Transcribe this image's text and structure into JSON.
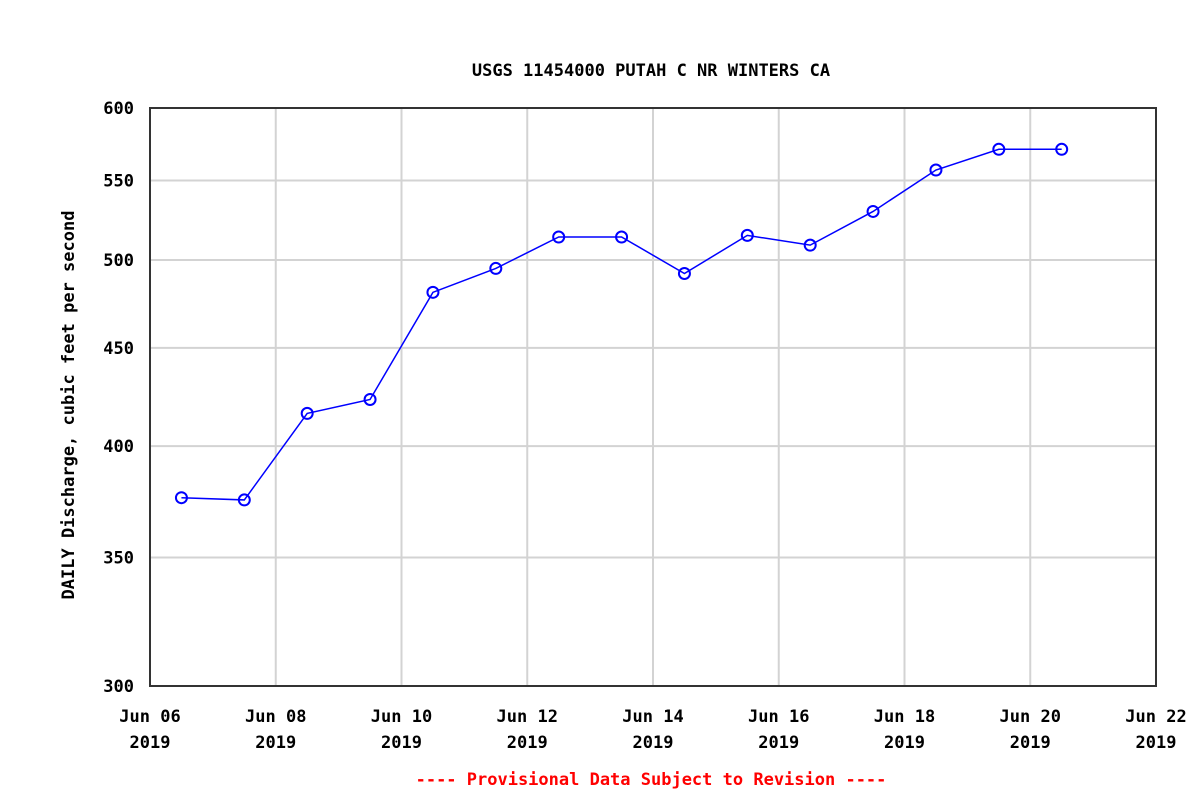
{
  "chart_data": {
    "type": "line",
    "title": "USGS 11454000 PUTAH C NR WINTERS CA",
    "xlabel": "",
    "ylabel": "DAILY Discharge, cubic feet per second",
    "yscale": "log",
    "ylim": [
      300,
      600
    ],
    "yticks": [
      300,
      350,
      400,
      450,
      500,
      550,
      600
    ],
    "xticks": [
      {
        "line1": "Jun 06",
        "line2": "2019"
      },
      {
        "line1": "Jun 08",
        "line2": "2019"
      },
      {
        "line1": "Jun 10",
        "line2": "2019"
      },
      {
        "line1": "Jun 12",
        "line2": "2019"
      },
      {
        "line1": "Jun 14",
        "line2": "2019"
      },
      {
        "line1": "Jun 16",
        "line2": "2019"
      },
      {
        "line1": "Jun 18",
        "line2": "2019"
      },
      {
        "line1": "Jun 20",
        "line2": "2019"
      },
      {
        "line1": "Jun 22",
        "line2": "2019"
      }
    ],
    "grid": true,
    "legend": null,
    "series": [
      {
        "name": "Daily Discharge",
        "color": "#0000ff",
        "marker": "circle",
        "x": [
          "2019-06-06",
          "2019-06-07",
          "2019-06-08",
          "2019-06-09",
          "2019-06-10",
          "2019-06-11",
          "2019-06-12",
          "2019-06-13",
          "2019-06-14",
          "2019-06-15",
          "2019-06-16",
          "2019-06-17",
          "2019-06-18",
          "2019-06-19",
          "2019-06-20"
        ],
        "values": [
          376,
          375,
          416,
          423,
          481,
          495,
          514,
          514,
          492,
          515,
          509,
          530,
          557,
          571,
          571
        ]
      }
    ],
    "annotation": "---- Provisional Data Subject to Revision ----"
  }
}
